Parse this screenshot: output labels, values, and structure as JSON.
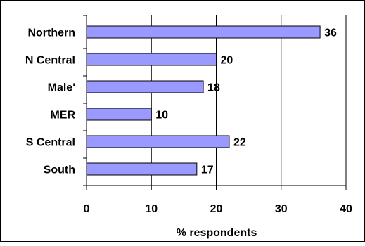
{
  "chart_data": {
    "type": "bar",
    "orientation": "horizontal",
    "categories": [
      "Northern",
      "N Central",
      "Male'",
      "MER",
      "S Central",
      "South"
    ],
    "values": [
      36,
      20,
      18,
      10,
      22,
      17
    ],
    "value_labels": [
      "36",
      "20",
      "18",
      "10",
      "22",
      "17"
    ],
    "title": "",
    "xlabel": "% respondents",
    "ylabel": "",
    "xlim": [
      0,
      40
    ],
    "x_ticks": [
      "0",
      "10",
      "20",
      "30",
      "40"
    ],
    "grid": "vertical major gridlines",
    "legend": "none",
    "colors": {
      "bar_fill": "#9999ff",
      "bar_stroke": "#000000",
      "gridline": "#000000",
      "frame": "#000000"
    }
  }
}
